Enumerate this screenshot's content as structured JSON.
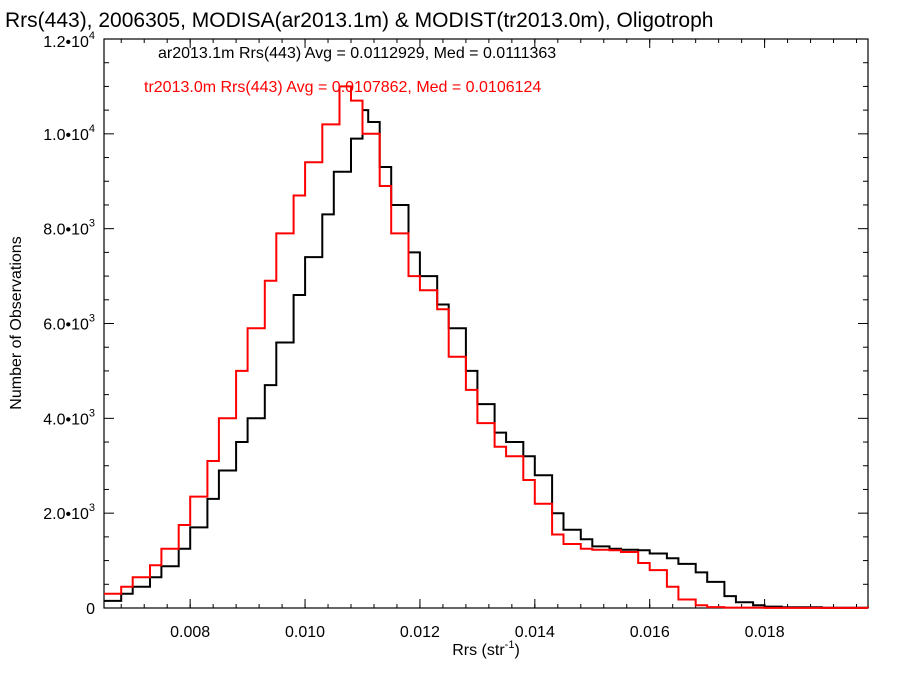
{
  "chart_data": {
    "type": "line",
    "title": "Rrs(443), 2006305, MODISA(ar2013.1m) & MODIST(tr2013.0m), Oligotroph",
    "xlabel_main": "Rrs (str",
    "xlabel_exp": "-1",
    "xlabel_close": ")",
    "ylabel": "Number of Observations",
    "xlim": [
      0.0065,
      0.0198
    ],
    "ylim": [
      0,
      12000
    ],
    "x_ticks": [
      {
        "value": 0.008,
        "label": "0.008"
      },
      {
        "value": 0.01,
        "label": "0.010"
      },
      {
        "value": 0.012,
        "label": "0.012"
      },
      {
        "value": 0.014,
        "label": "0.014"
      },
      {
        "value": 0.016,
        "label": "0.016"
      },
      {
        "value": 0.018,
        "label": "0.018"
      }
    ],
    "y_ticks": [
      {
        "value": 0,
        "base": "0",
        "exp": ""
      },
      {
        "value": 2000,
        "base": "2.0•10",
        "exp": "3"
      },
      {
        "value": 4000,
        "base": "4.0•10",
        "exp": "3"
      },
      {
        "value": 6000,
        "base": "6.0•10",
        "exp": "3"
      },
      {
        "value": 8000,
        "base": "8.0•10",
        "exp": "3"
      },
      {
        "value": 10000,
        "base": "1.0•10",
        "exp": "4"
      },
      {
        "value": 12000,
        "base": "1.2•10",
        "exp": "4"
      }
    ],
    "grid": false,
    "legend_position": "top-left",
    "series": [
      {
        "name": "ar2013.1m Rrs(443) Avg = 0.0112929, Med = 0.0111363",
        "color": "#000000",
        "points": [
          [
            0.0065,
            150
          ],
          [
            0.0068,
            300
          ],
          [
            0.007,
            450
          ],
          [
            0.0073,
            650
          ],
          [
            0.0075,
            880
          ],
          [
            0.0078,
            1250
          ],
          [
            0.008,
            1700
          ],
          [
            0.0083,
            2300
          ],
          [
            0.0085,
            2900
          ],
          [
            0.0088,
            3500
          ],
          [
            0.009,
            4000
          ],
          [
            0.0093,
            4700
          ],
          [
            0.0095,
            5600
          ],
          [
            0.0098,
            6600
          ],
          [
            0.01,
            7400
          ],
          [
            0.0103,
            8300
          ],
          [
            0.0105,
            9200
          ],
          [
            0.0108,
            9900
          ],
          [
            0.011,
            10500
          ],
          [
            0.0111,
            10250
          ],
          [
            0.0113,
            9300
          ],
          [
            0.0115,
            8500
          ],
          [
            0.0118,
            7500
          ],
          [
            0.012,
            7000
          ],
          [
            0.0123,
            6400
          ],
          [
            0.0125,
            5900
          ],
          [
            0.0128,
            5000
          ],
          [
            0.013,
            4300
          ],
          [
            0.0133,
            3700
          ],
          [
            0.0135,
            3500
          ],
          [
            0.0138,
            3200
          ],
          [
            0.014,
            2800
          ],
          [
            0.0143,
            2000
          ],
          [
            0.0145,
            1650
          ],
          [
            0.0148,
            1450
          ],
          [
            0.015,
            1300
          ],
          [
            0.0153,
            1250
          ],
          [
            0.0155,
            1230
          ],
          [
            0.0158,
            1220
          ],
          [
            0.016,
            1150
          ],
          [
            0.0163,
            1050
          ],
          [
            0.0165,
            930
          ],
          [
            0.0168,
            750
          ],
          [
            0.017,
            550
          ],
          [
            0.0173,
            250
          ],
          [
            0.0175,
            120
          ],
          [
            0.0178,
            60
          ],
          [
            0.018,
            30
          ],
          [
            0.0183,
            15
          ],
          [
            0.019,
            5
          ],
          [
            0.0198,
            2
          ]
        ]
      },
      {
        "name": "tr2013.0m Rrs(443) Avg = 0.0107862, Med = 0.0106124",
        "color": "#ff0000",
        "points": [
          [
            0.0065,
            300
          ],
          [
            0.0068,
            450
          ],
          [
            0.007,
            650
          ],
          [
            0.0073,
            900
          ],
          [
            0.0075,
            1250
          ],
          [
            0.0078,
            1750
          ],
          [
            0.008,
            2350
          ],
          [
            0.0083,
            3100
          ],
          [
            0.0085,
            4000
          ],
          [
            0.0088,
            5000
          ],
          [
            0.009,
            5900
          ],
          [
            0.0093,
            6900
          ],
          [
            0.0095,
            7900
          ],
          [
            0.0098,
            8700
          ],
          [
            0.01,
            9400
          ],
          [
            0.0103,
            10200
          ],
          [
            0.0106,
            11000
          ],
          [
            0.0108,
            10700
          ],
          [
            0.011,
            10000
          ],
          [
            0.0113,
            8900
          ],
          [
            0.0115,
            7900
          ],
          [
            0.0118,
            7000
          ],
          [
            0.012,
            6700
          ],
          [
            0.0123,
            6300
          ],
          [
            0.0125,
            5300
          ],
          [
            0.0128,
            4600
          ],
          [
            0.013,
            3900
          ],
          [
            0.0133,
            3400
          ],
          [
            0.0135,
            3200
          ],
          [
            0.0138,
            2700
          ],
          [
            0.014,
            2200
          ],
          [
            0.0143,
            1550
          ],
          [
            0.0145,
            1350
          ],
          [
            0.0148,
            1250
          ],
          [
            0.015,
            1230
          ],
          [
            0.0153,
            1220
          ],
          [
            0.0155,
            1180
          ],
          [
            0.0158,
            950
          ],
          [
            0.016,
            800
          ],
          [
            0.0163,
            450
          ],
          [
            0.0165,
            180
          ],
          [
            0.0168,
            60
          ],
          [
            0.017,
            20
          ],
          [
            0.0173,
            8
          ],
          [
            0.018,
            3
          ],
          [
            0.0198,
            1
          ]
        ]
      }
    ]
  }
}
